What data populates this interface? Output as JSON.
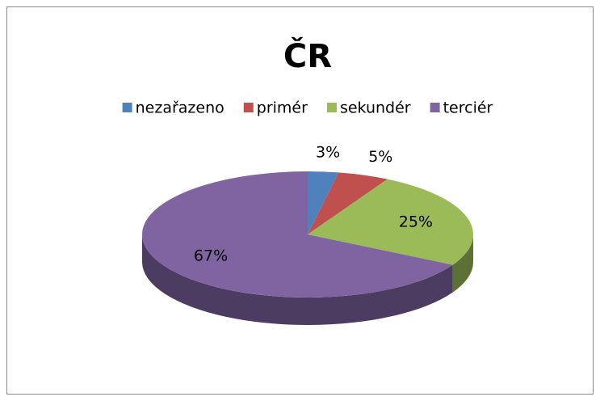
{
  "chart_data": {
    "type": "pie",
    "title": "ČR",
    "categories": [
      "nezařazeno",
      "primér",
      "sekundér",
      "terciér"
    ],
    "values": [
      3,
      5,
      25,
      67
    ],
    "value_labels": [
      "3%",
      "5%",
      "25%",
      "67%"
    ],
    "colors": [
      "#4f81bd",
      "#c0504d",
      "#9bbb59",
      "#8064a2"
    ],
    "legend": "top"
  }
}
